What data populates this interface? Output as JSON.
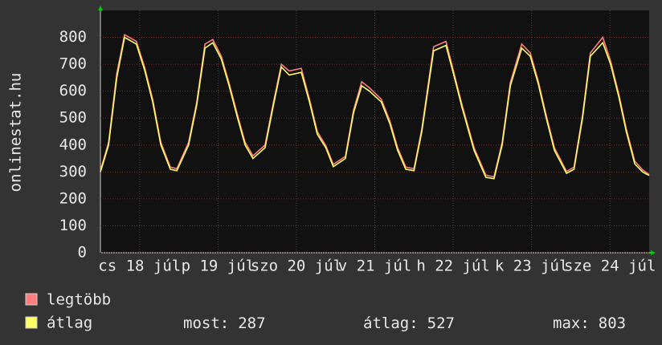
{
  "chart_data": {
    "type": "line",
    "y_label": "onlinestat.hu",
    "x": [
      0,
      2.5,
      5,
      7.4,
      11,
      13.5,
      16,
      18.5,
      21.4,
      23.4,
      27,
      29.5,
      32,
      34.4,
      37,
      39.4,
      42,
      44.3,
      46.7,
      50.4,
      53,
      55.4,
      57.8,
      61.5,
      64,
      66.4,
      69,
      71.3,
      75,
      77.5,
      80,
      82.4,
      86,
      88.6,
      91,
      93.5,
      96,
      98.4,
      102,
      105.8,
      108.2,
      110.7,
      114.4,
      118,
      120.5,
      123,
      125.5,
      129,
      131.6,
      134,
      136.5,
      139,
      142.7,
      145,
      147.6,
      150,
      153.8,
      156.2,
      158.7,
      161,
      163.6,
      166,
      168
    ],
    "series": [
      {
        "name": "legtöbb",
        "color": "#ff7f7f",
        "values": [
          305,
          410,
          665,
          810,
          785,
          690,
          570,
          410,
          318,
          312,
          410,
          560,
          775,
          792,
          730,
          630,
          510,
          410,
          360,
          400,
          560,
          700,
          675,
          685,
          570,
          450,
          398,
          328,
          358,
          530,
          635,
          612,
          570,
          490,
          390,
          318,
          312,
          460,
          765,
          785,
          670,
          550,
          390,
          288,
          282,
          410,
          632,
          775,
          742,
          640,
          510,
          390,
          302,
          318,
          510,
          742,
          800,
          712,
          590,
          460,
          340,
          308,
          290
        ]
      },
      {
        "name": "átlag",
        "color": "#ffff66",
        "values": [
          300,
          400,
          650,
          800,
          775,
          680,
          560,
          400,
          310,
          305,
          400,
          550,
          760,
          780,
          720,
          620,
          500,
          400,
          350,
          390,
          550,
          690,
          660,
          670,
          560,
          440,
          390,
          320,
          350,
          520,
          620,
          600,
          560,
          480,
          380,
          310,
          305,
          450,
          750,
          770,
          660,
          540,
          380,
          280,
          275,
          400,
          620,
          760,
          730,
          630,
          500,
          380,
          295,
          310,
          500,
          730,
          780,
          700,
          580,
          450,
          330,
          300,
          287
        ]
      }
    ],
    "xlim": [
      0,
      168
    ],
    "xticks": [
      {
        "value": 12,
        "label": "cs 18 júl"
      },
      {
        "value": 36,
        "label": "p 19 júl"
      },
      {
        "value": 60,
        "label": "szo 20 júl"
      },
      {
        "value": 84,
        "label": "v 21 júl"
      },
      {
        "value": 108,
        "label": "h 22 júl"
      },
      {
        "value": 132,
        "label": "k 23 júl"
      },
      {
        "value": 156,
        "label": "sze 24 júl"
      }
    ],
    "ylim": [
      0,
      900
    ],
    "yticks": [
      0,
      100,
      200,
      300,
      400,
      500,
      600,
      700,
      800
    ],
    "grid": true,
    "stats": [
      {
        "label": "most:",
        "value": 287
      },
      {
        "label": "átlag:",
        "value": 527
      },
      {
        "label": "max:",
        "value": 803
      }
    ]
  }
}
